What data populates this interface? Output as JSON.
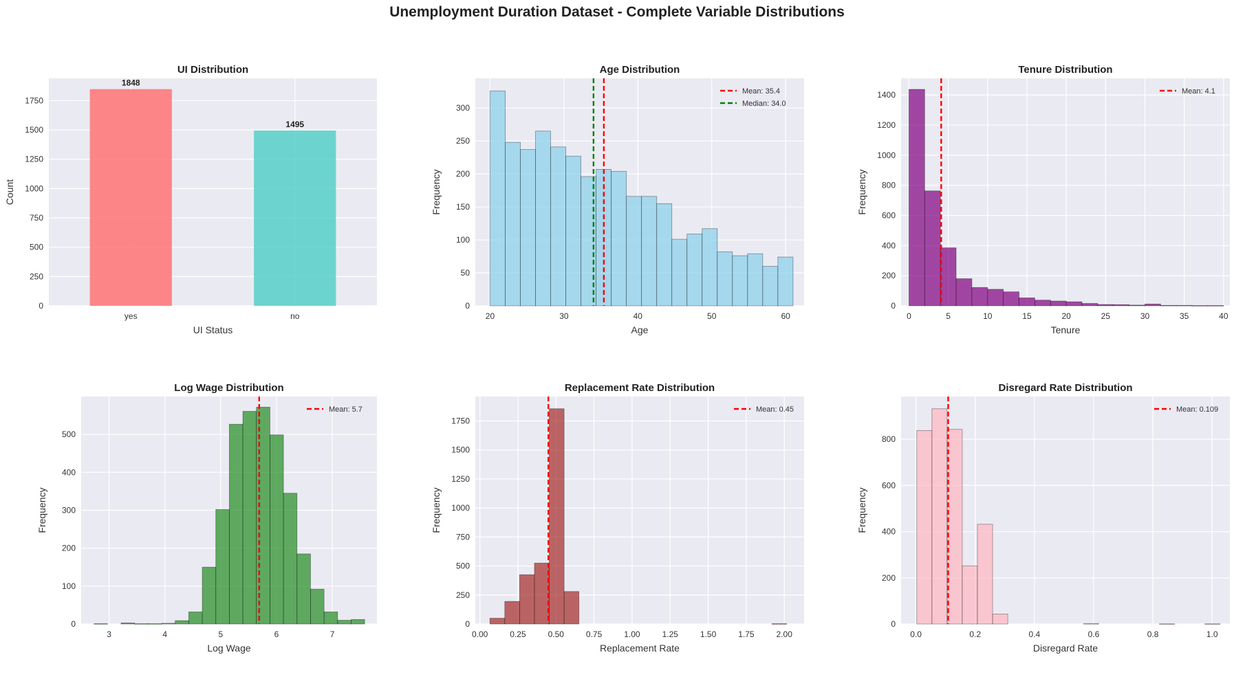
{
  "figure_title": "Unemployment Duration Dataset - Complete Variable Distributions",
  "chart_data": [
    {
      "type": "bar",
      "title": "UI Distribution",
      "xlabel": "UI Status",
      "ylabel": "Count",
      "categories": [
        "yes",
        "no"
      ],
      "values": [
        1848,
        1495
      ],
      "colors": [
        "#ff6b6b",
        "#4ecdc4"
      ],
      "value_labels": [
        "1848",
        "1495"
      ],
      "ylim": [
        0,
        1940
      ],
      "yticks": [
        0,
        250,
        500,
        750,
        1000,
        1250,
        1500,
        1750
      ],
      "ytick_labels": [
        "0",
        "250",
        "500",
        "750",
        "1000",
        "1250",
        "1500",
        "1750"
      ]
    },
    {
      "type": "histogram",
      "title": "Age Distribution",
      "xlabel": "Age",
      "ylabel": "Frequency",
      "color": "#87ceeb",
      "bin_start": 20,
      "bin_width": 2.05,
      "values": [
        326,
        248,
        237,
        265,
        241,
        227,
        196,
        207,
        204,
        166,
        166,
        155,
        101,
        109,
        117,
        82,
        76,
        79,
        60,
        74
      ],
      "xlim": [
        18,
        62.5
      ],
      "ylim": [
        0,
        345
      ],
      "xticks": [
        20,
        30,
        40,
        50,
        60
      ],
      "xtick_labels": [
        "20",
        "30",
        "40",
        "50",
        "60"
      ],
      "yticks": [
        0,
        50,
        100,
        150,
        200,
        250,
        300
      ],
      "ytick_labels": [
        "0",
        "50",
        "100",
        "150",
        "200",
        "250",
        "300"
      ],
      "vlines": [
        {
          "value": 35.4,
          "color": "#ff0000",
          "label": "Mean: 35.4"
        },
        {
          "value": 34.0,
          "color": "#008000",
          "label": "Median: 34.0"
        }
      ]
    },
    {
      "type": "histogram",
      "title": "Tenure Distribution",
      "xlabel": "Tenure",
      "ylabel": "Frequency",
      "color": "#800080",
      "bin_start": 0,
      "bin_width": 2.0,
      "values": [
        1437,
        763,
        385,
        180,
        122,
        110,
        93,
        53,
        38,
        32,
        27,
        16,
        9,
        8,
        5,
        12,
        3,
        3,
        2,
        2
      ],
      "xlim": [
        -1,
        40.8
      ],
      "ylim": [
        0,
        1510
      ],
      "xticks": [
        0,
        5,
        10,
        15,
        20,
        25,
        30,
        35,
        40
      ],
      "xtick_labels": [
        "0",
        "5",
        "10",
        "15",
        "20",
        "25",
        "30",
        "35",
        "40"
      ],
      "yticks": [
        0,
        200,
        400,
        600,
        800,
        1000,
        1200,
        1400
      ],
      "ytick_labels": [
        "0",
        "200",
        "400",
        "600",
        "800",
        "1000",
        "1200",
        "1400"
      ],
      "vlines": [
        {
          "value": 4.1,
          "color": "#ff0000",
          "label": "Mean: 4.1"
        }
      ]
    },
    {
      "type": "histogram",
      "title": "Log Wage Distribution",
      "xlabel": "Log Wage",
      "ylabel": "Frequency",
      "color": "#228b22",
      "bin_start": 2.73,
      "bin_width": 0.2425,
      "values": [
        1,
        0,
        3,
        1,
        1,
        2,
        9,
        32,
        150,
        302,
        527,
        561,
        572,
        499,
        345,
        185,
        92,
        32,
        10,
        12
      ],
      "xlim": [
        2.5,
        7.8
      ],
      "ylim": [
        0,
        600
      ],
      "xticks": [
        3,
        4,
        5,
        6,
        7
      ],
      "xtick_labels": [
        "3",
        "4",
        "5",
        "6",
        "7"
      ],
      "yticks": [
        0,
        100,
        200,
        300,
        400,
        500
      ],
      "ytick_labels": [
        "0",
        "100",
        "200",
        "300",
        "400",
        "500"
      ],
      "vlines": [
        {
          "value": 5.69,
          "color": "#ff0000",
          "label": "Mean: 5.7"
        }
      ]
    },
    {
      "type": "histogram",
      "title": "Replacement Rate Distribution",
      "xlabel": "Replacement Rate",
      "ylabel": "Frequency",
      "color": "#a52a2a",
      "bin_start": 0.066,
      "bin_width": 0.0975,
      "values": [
        50,
        195,
        425,
        525,
        1855,
        280,
        0,
        0,
        0,
        0,
        0,
        0,
        0,
        0,
        0,
        0,
        0,
        0,
        0,
        3
      ],
      "xlim": [
        -0.03,
        2.13
      ],
      "ylim": [
        0,
        1960
      ],
      "xticks": [
        0,
        0.25,
        0.5,
        0.75,
        1.0,
        1.25,
        1.5,
        1.75,
        2.0
      ],
      "xtick_labels": [
        "0.00",
        "0.25",
        "0.50",
        "0.75",
        "1.00",
        "1.25",
        "1.50",
        "1.75",
        "2.00"
      ],
      "yticks": [
        0,
        250,
        500,
        750,
        1000,
        1250,
        1500,
        1750
      ],
      "ytick_labels": [
        "0",
        "250",
        "500",
        "750",
        "1000",
        "1250",
        "1500",
        "1750"
      ],
      "vlines": [
        {
          "value": 0.45,
          "color": "#ff0000",
          "label": "Mean: 0.45"
        }
      ]
    },
    {
      "type": "histogram",
      "title": "Disregard Rate Distribution",
      "xlabel": "Disregard Rate",
      "ylabel": "Frequency",
      "color": "#ffb6c1",
      "bin_start": 0.003,
      "bin_width": 0.0512,
      "values": [
        838,
        932,
        843,
        252,
        432,
        43,
        0,
        0,
        0,
        0,
        0,
        2,
        0,
        0,
        0,
        0,
        1,
        0,
        0,
        1
      ],
      "xlim": [
        -0.05,
        1.06
      ],
      "ylim": [
        0,
        985
      ],
      "xticks": [
        0.0,
        0.2,
        0.4,
        0.6,
        0.8,
        1.0
      ],
      "xtick_labels": [
        "0.0",
        "0.2",
        "0.4",
        "0.6",
        "0.8",
        "1.0"
      ],
      "yticks": [
        0,
        200,
        400,
        600,
        800
      ],
      "ytick_labels": [
        "0",
        "200",
        "400",
        "600",
        "800"
      ],
      "vlines": [
        {
          "value": 0.109,
          "color": "#ff0000",
          "label": "Mean: 0.109"
        }
      ]
    }
  ]
}
